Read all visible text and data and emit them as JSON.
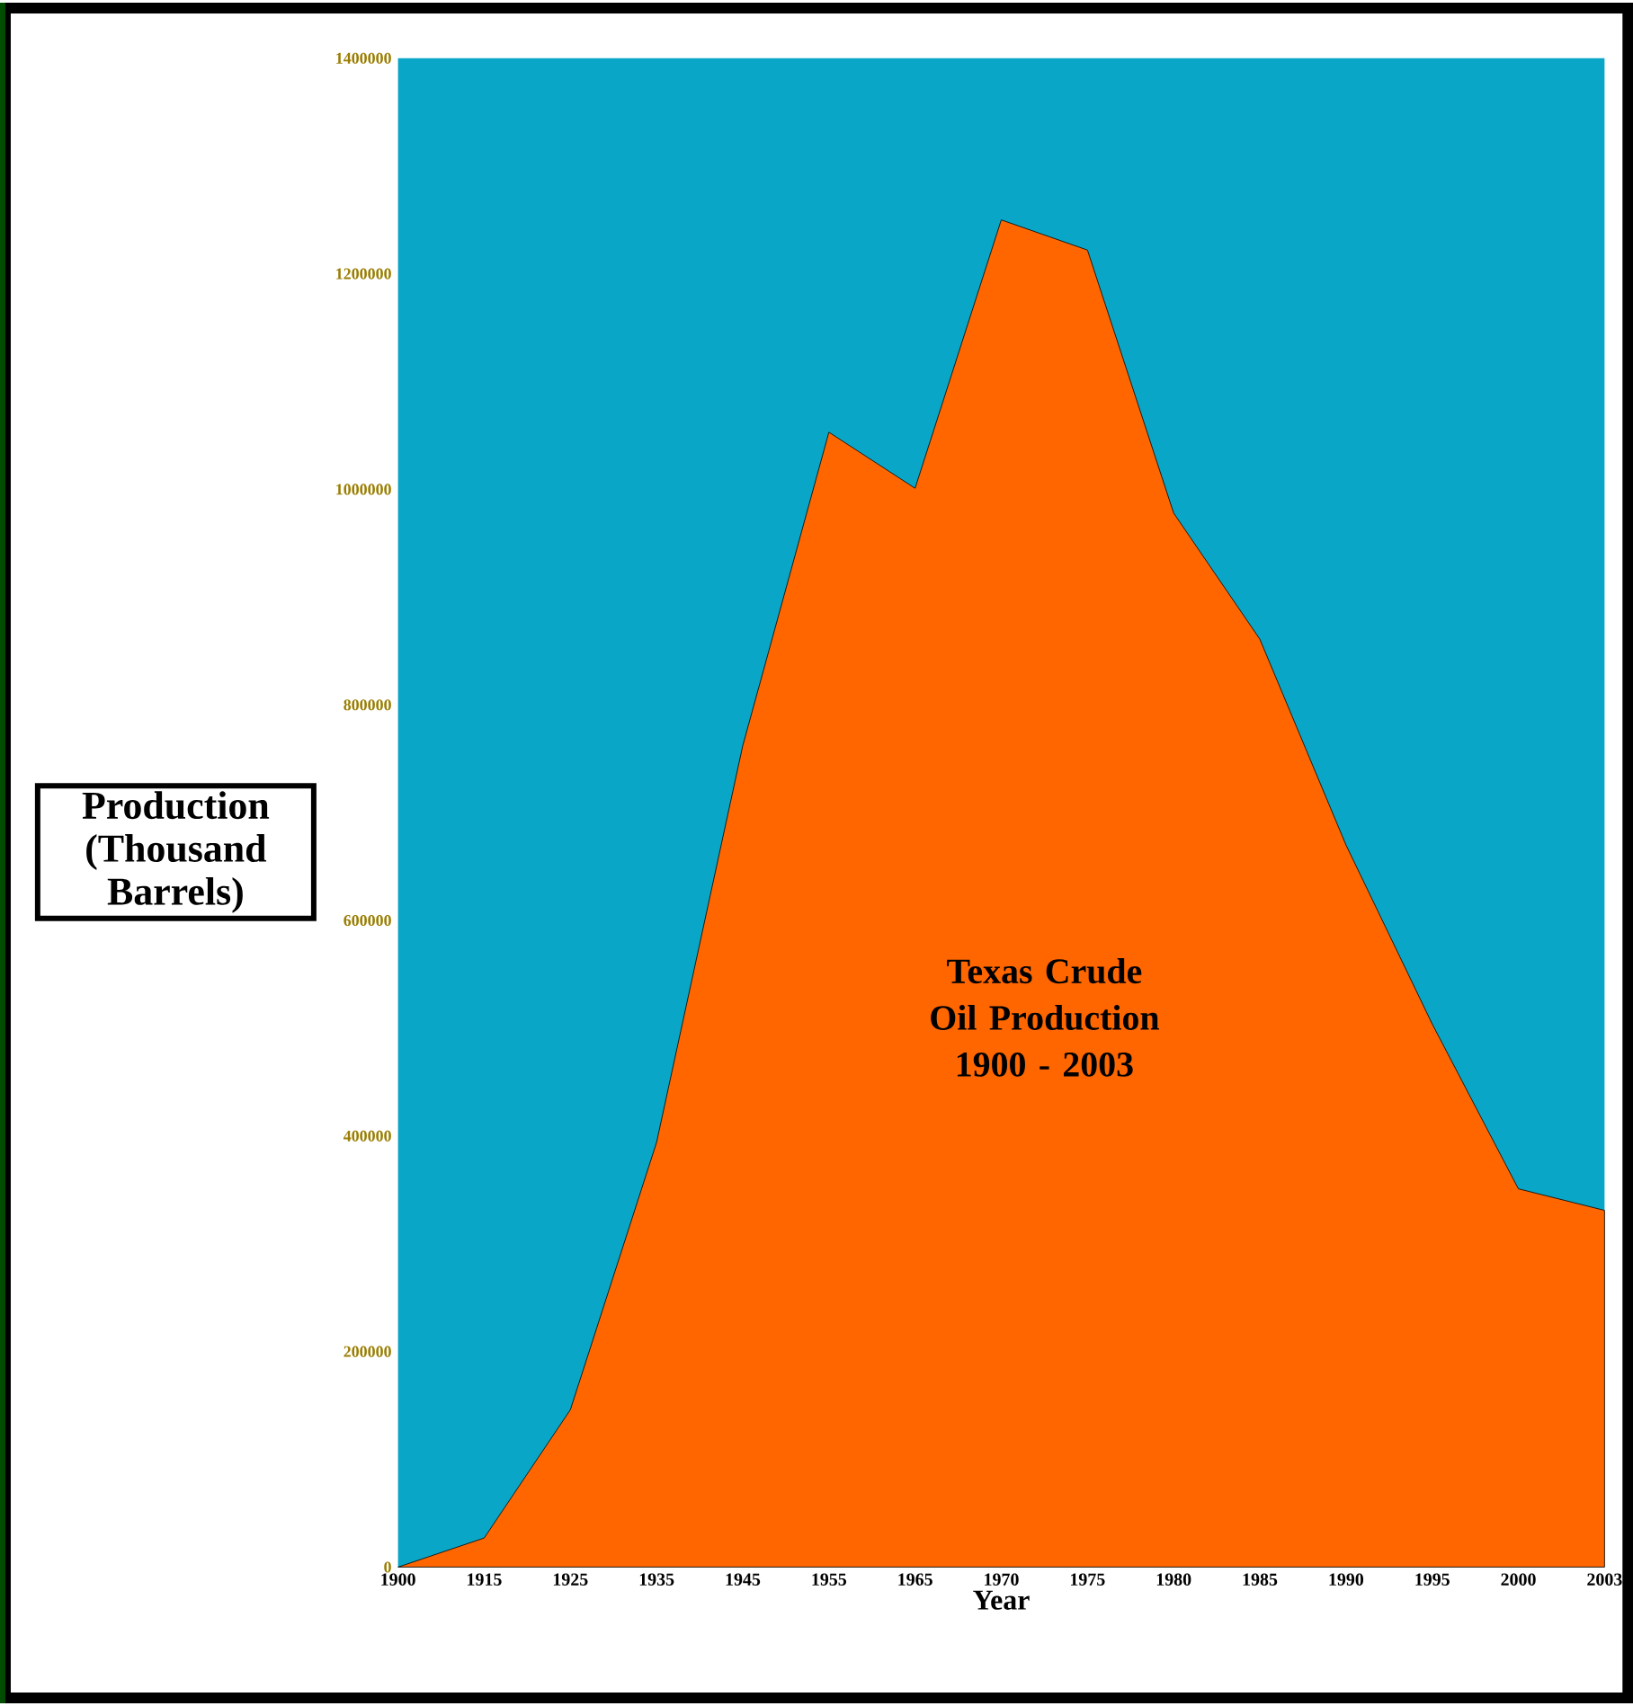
{
  "chart_data": {
    "type": "area",
    "title": "Texas Crude Oil Production 1900 - 2003",
    "xlabel": "Year",
    "ylabel": "Production (Thousand Barrels)",
    "categories": [
      "1900",
      "1915",
      "1925",
      "1935",
      "1945",
      "1955",
      "1965",
      "1970",
      "1975",
      "1980",
      "1985",
      "1990",
      "1995",
      "2000",
      "2003"
    ],
    "values": [
      0,
      27000,
      146000,
      394000,
      762000,
      1053000,
      1001000,
      1250000,
      1222000,
      978000,
      861000,
      670000,
      504000,
      351000,
      331000
    ],
    "color": "#ff6600",
    "ylim": [
      0,
      1400000
    ],
    "yticks": [
      0,
      200000,
      400000,
      600000,
      800000,
      1000000,
      1200000,
      1400000
    ],
    "grid": false
  }
}
